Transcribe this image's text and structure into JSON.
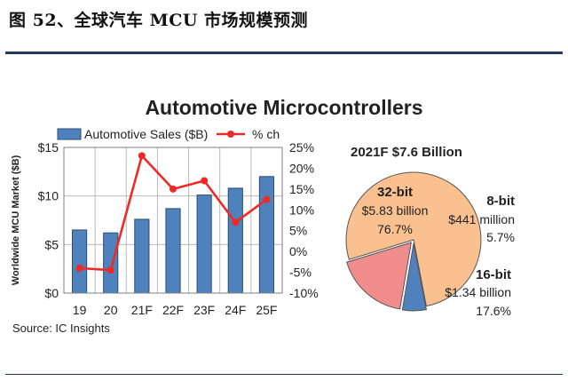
{
  "figure_caption": "图 52、全球汽车 MCU 市场规模预测",
  "colors": {
    "bar_fill": "#4f81bd",
    "bar_stroke": "#2c4d75",
    "line": "#ee2a24",
    "pie_32bit": "#fac090",
    "pie_8bit": "#4f81bd",
    "pie_16bit": "#f08c8c",
    "caption_rule": "#1f3864"
  },
  "chart_data": [
    {
      "type": "bar",
      "title": "Automotive Microcontrollers",
      "categories": [
        "19",
        "20",
        "21F",
        "22F",
        "23F",
        "24F",
        "25F"
      ],
      "ylabel": "Worldwide MCU Market ($B)",
      "y_ticks": [
        "$15",
        "$10",
        "$5",
        "$0"
      ],
      "ylim": [
        0,
        15
      ],
      "y2_ticks": [
        "25%",
        "20%",
        "15%",
        "10%",
        "5%",
        "0%",
        "-5%",
        "-10%"
      ],
      "y2lim": [
        -10,
        25
      ],
      "grid": true,
      "legend_position": "top",
      "series": [
        {
          "name": "Automotive Sales ($B)",
          "kind": "bar",
          "axis": "left",
          "values": [
            6.5,
            6.2,
            7.6,
            8.7,
            10.1,
            10.8,
            12.0
          ]
        },
        {
          "name": "% ch",
          "kind": "line",
          "axis": "right",
          "values": [
            -4,
            -4.5,
            23,
            15,
            17,
            7,
            12.5
          ]
        }
      ],
      "source": "Source: IC Insights"
    },
    {
      "type": "pie",
      "title": "2021F $7.6 Billion",
      "slices": [
        {
          "name": "32-bit",
          "amount": "$5.83 billion",
          "percent_label": "76.7%",
          "value": 76.7
        },
        {
          "name": "8-bit",
          "amount": "$441 million",
          "percent_label": "5.7%",
          "value": 5.7
        },
        {
          "name": "16-bit",
          "amount": "$1.34 billion",
          "percent_label": "17.6%",
          "value": 17.6
        }
      ]
    }
  ]
}
